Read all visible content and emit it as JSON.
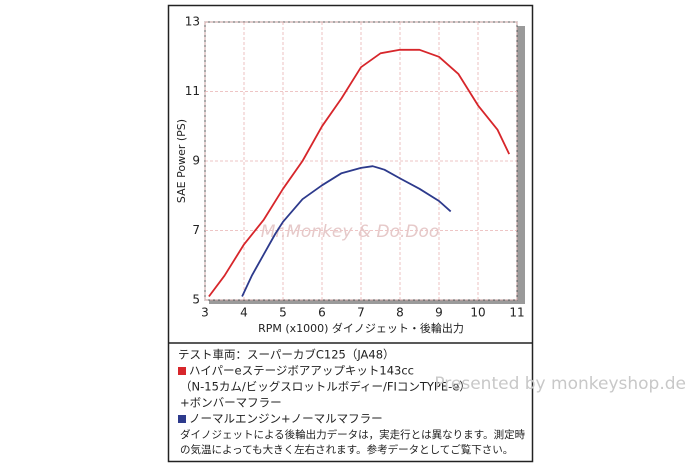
{
  "chart_data": {
    "type": "line",
    "xlabel": "RPM (x1000) ダイノジェット・後輪出力",
    "ylabel": "SAE Power (PS)",
    "xlim": [
      3,
      11
    ],
    "xticks": [
      3,
      4,
      5,
      6,
      7,
      8,
      9,
      10,
      11
    ],
    "ylim": [
      5,
      13
    ],
    "yticks": [
      5,
      7,
      9,
      11,
      13
    ],
    "grid": true,
    "watermark_chart": "Mr.Monkey & Do.Doo",
    "series": [
      {
        "name": "ハイパーeステージボアアップキット143cc",
        "color": "#d7262b",
        "x": [
          3.1,
          3.5,
          4.0,
          4.5,
          5.0,
          5.5,
          6.0,
          6.5,
          7.0,
          7.5,
          8.0,
          8.5,
          9.0,
          9.5,
          10.0,
          10.5,
          10.8
        ],
        "values": [
          5.1,
          5.7,
          6.6,
          7.3,
          8.2,
          9.0,
          10.0,
          10.8,
          11.7,
          12.1,
          12.2,
          12.2,
          12.0,
          11.5,
          10.6,
          9.9,
          9.2
        ],
        "notes": [
          "（N-15カム/ビッグスロットルボディー/FIコンTYPE-e）",
          "+ボンバーマフラー"
        ]
      },
      {
        "name": "ノーマルエンジン+ノーマルマフラー",
        "color": "#2d3a8c",
        "x": [
          3.95,
          4.2,
          4.5,
          4.8,
          5.0,
          5.5,
          6.0,
          6.5,
          7.0,
          7.3,
          7.6,
          8.0,
          8.5,
          9.0,
          9.3
        ],
        "values": [
          5.1,
          5.7,
          6.3,
          6.9,
          7.25,
          7.9,
          8.3,
          8.65,
          8.8,
          8.85,
          8.75,
          8.5,
          8.2,
          7.85,
          7.55
        ]
      }
    ],
    "legend_title": "テスト車両：スーパーカブC125（JA48）",
    "disclaimer": [
      "ダイノジェットによる後輪出力データは，実走行とは異なります。測定時",
      "の気温によっても大きく左右されます。参考データとしてご覧下さい。"
    ],
    "watermark": "Presented by monkeyshop.de"
  }
}
